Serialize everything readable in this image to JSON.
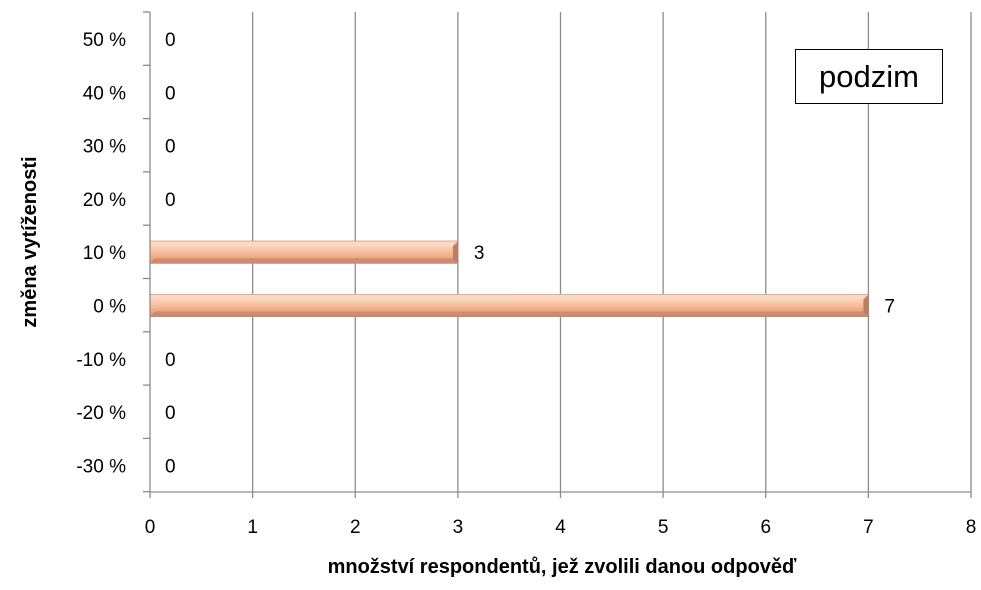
{
  "chart_data": {
    "type": "bar",
    "orientation": "horizontal",
    "categories": [
      "50 %",
      "40 %",
      "30 %",
      "20 %",
      "10 %",
      "0 %",
      "-10 %",
      "-20 %",
      "-30 %"
    ],
    "values": [
      0,
      0,
      0,
      0,
      3,
      7,
      0,
      0,
      0
    ],
    "data_labels": [
      "0",
      "0",
      "0",
      "0",
      "3",
      "7",
      "0",
      "0",
      "0"
    ],
    "xlabel": "množství respondentů, jež  zvolili danou odpověď",
    "ylabel": "změna vytíženosti",
    "xlim": [
      0,
      8
    ],
    "x_ticks": [
      "0",
      "1",
      "2",
      "3",
      "4",
      "5",
      "6",
      "7",
      "8"
    ],
    "grid": "vertical",
    "annotation": "podzim",
    "colors": {
      "bar_light": "#f8d9c4",
      "bar_mid": "#f0b08a",
      "bar_dark": "#c9876a",
      "grid": "#8c8c8c"
    }
  }
}
